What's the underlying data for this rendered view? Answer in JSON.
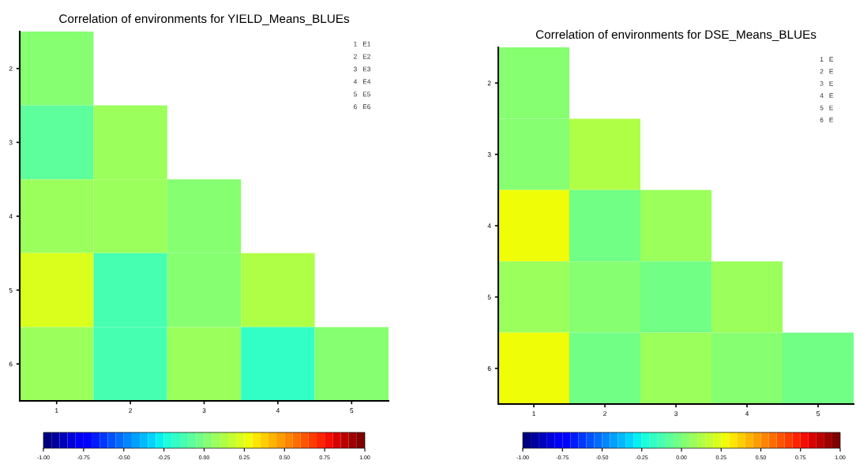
{
  "chart_data": [
    {
      "type": "heatmap",
      "title": "Correlation of environments for YIELD_Means_BLUEs",
      "categories": [
        "1",
        "2",
        "3",
        "4",
        "5"
      ],
      "y_categories": [
        "2",
        "3",
        "4",
        "5",
        "6"
      ],
      "cells": [
        [
          0.02,
          null,
          null,
          null,
          null
        ],
        [
          -0.07,
          0.09,
          null,
          null,
          null
        ],
        [
          0.09,
          0.09,
          0.02,
          null,
          null
        ],
        [
          0.22,
          -0.12,
          0.02,
          0.15,
          null
        ],
        [
          0.09,
          -0.12,
          0.09,
          -0.18,
          0.02
        ]
      ],
      "clim": [
        -1,
        1
      ],
      "cticks": [
        {
          "value": -1,
          "label": "-1.00"
        },
        {
          "value": -0.75,
          "label": "-0.75"
        },
        {
          "value": -0.5,
          "label": "-0.50"
        },
        {
          "value": -0.25,
          "label": "-0.25"
        },
        {
          "value": 0,
          "label": "0.00"
        },
        {
          "value": 0.25,
          "label": "0.25"
        },
        {
          "value": 0.5,
          "label": "0.50"
        },
        {
          "value": 0.75,
          "label": "0.75"
        },
        {
          "value": 1,
          "label": "1.00"
        }
      ],
      "annotations": [
        "1   E1",
        "2   E2",
        "3   E3",
        "4   E4",
        "5   E5",
        "6   E6"
      ]
    },
    {
      "type": "heatmap",
      "title": "Correlation of environments for DSE_Means_BLUEs",
      "categories": [
        "1",
        "2",
        "3",
        "4",
        "5"
      ],
      "y_categories": [
        "2",
        "3",
        "4",
        "5",
        "6"
      ],
      "cells": [
        [
          0.02,
          null,
          null,
          null,
          null
        ],
        [
          0.02,
          0.15,
          null,
          null,
          null
        ],
        [
          0.27,
          -0.03,
          0.09,
          null,
          null
        ],
        [
          0.09,
          0.02,
          -0.03,
          0.09,
          null
        ],
        [
          0.27,
          -0.03,
          0.09,
          0.02,
          -0.03
        ]
      ],
      "clim": [
        -1,
        1
      ],
      "cticks": [
        {
          "value": -1,
          "label": "-1.00"
        },
        {
          "value": -0.75,
          "label": "-0.75"
        },
        {
          "value": -0.5,
          "label": "-0.50"
        },
        {
          "value": -0.25,
          "label": "-0.25"
        },
        {
          "value": 0,
          "label": "0.00"
        },
        {
          "value": 0.25,
          "label": "0.25"
        },
        {
          "value": 0.5,
          "label": "0.50"
        },
        {
          "value": 0.75,
          "label": "0.75"
        },
        {
          "value": 1,
          "label": "1.00"
        }
      ],
      "annotations": [
        "1   E",
        "2   E",
        "3   E",
        "4   E",
        "5   E",
        "6   E"
      ]
    }
  ]
}
